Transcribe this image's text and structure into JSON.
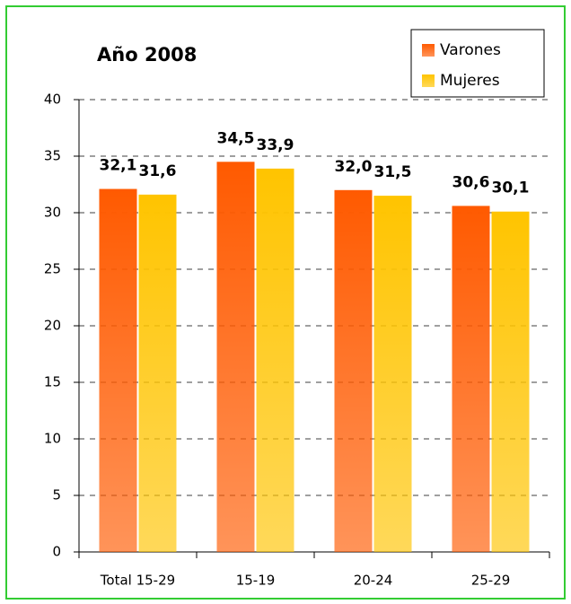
{
  "chart_data": {
    "type": "bar",
    "title": "Año 2008",
    "categories": [
      "Total 15-29",
      "15-19",
      "20-24",
      "25-29"
    ],
    "series": [
      {
        "name": "Varones",
        "color": "#ff5a00",
        "values": [
          32.1,
          34.5,
          32.0,
          30.6
        ],
        "value_labels": [
          "32,1",
          "34,5",
          "32,0",
          "30,6"
        ]
      },
      {
        "name": "Mujeres",
        "color": "#ffc400",
        "values": [
          31.6,
          33.9,
          31.5,
          30.1
        ],
        "value_labels": [
          "31,6",
          "33,9",
          "31,5",
          "30,1"
        ]
      }
    ],
    "ylim": [
      0,
      40
    ],
    "yticks": [
      0,
      5,
      10,
      15,
      20,
      25,
      30,
      35,
      40
    ],
    "grid": true,
    "legend": "top-right"
  }
}
